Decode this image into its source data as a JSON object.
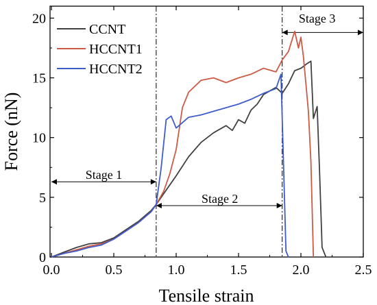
{
  "chart_data": {
    "type": "line",
    "title": "",
    "xlabel": "Tensile strain",
    "ylabel": "Force (nN)",
    "xlim": [
      0.0,
      2.5
    ],
    "ylim": [
      0,
      21
    ],
    "x_ticks": [
      0.0,
      0.5,
      1.0,
      1.5,
      2.0,
      2.5
    ],
    "x_tick_labels": [
      "0.0",
      "0.5",
      "1.0",
      "1.5",
      "2.0",
      "2.5"
    ],
    "y_ticks": [
      0,
      5,
      10,
      15,
      20
    ],
    "y_tick_labels": [
      "0",
      "5",
      "10",
      "15",
      "20"
    ],
    "grid": false,
    "legend": {
      "position": "top-left",
      "entries": [
        "CCNT",
        "HCCNT1",
        "HCCNT2"
      ]
    },
    "stage_boundaries": [
      0.84,
      1.85
    ],
    "annotations": [
      {
        "text": "Stage 1",
        "x": 0.42,
        "y": 6.3,
        "arrow_from": 0.0,
        "arrow_to": 0.84,
        "arrow_y": 6.3
      },
      {
        "text": "Stage 2",
        "x": 1.35,
        "y": 4.3,
        "arrow_from": 0.84,
        "arrow_to": 1.85,
        "arrow_y": 4.3
      },
      {
        "text": "Stage 3",
        "x": 2.13,
        "y": 19.4,
        "arrow_from": 1.85,
        "arrow_to": 2.5,
        "arrow_y": 18.8
      }
    ],
    "series": [
      {
        "name": "CCNT",
        "color": "#404040",
        "x": [
          0.0,
          0.1,
          0.2,
          0.3,
          0.4,
          0.5,
          0.6,
          0.7,
          0.8,
          0.84,
          0.9,
          1.0,
          1.1,
          1.2,
          1.3,
          1.4,
          1.45,
          1.5,
          1.55,
          1.6,
          1.65,
          1.7,
          1.75,
          1.8,
          1.85,
          1.9,
          1.95,
          2.0,
          2.05,
          2.08,
          2.1,
          2.13,
          2.15,
          2.17,
          2.2
        ],
        "y": [
          0.0,
          0.4,
          0.8,
          1.1,
          1.2,
          1.6,
          2.3,
          3.0,
          3.9,
          4.4,
          5.3,
          6.8,
          8.4,
          9.6,
          10.4,
          11.0,
          10.6,
          11.5,
          11.2,
          12.3,
          12.8,
          13.6,
          13.9,
          14.2,
          13.7,
          14.5,
          15.6,
          15.8,
          16.2,
          16.4,
          11.6,
          12.6,
          7.0,
          0.8,
          0.0
        ]
      },
      {
        "name": "HCCNT1",
        "color": "#cc5a44",
        "x": [
          0.0,
          0.1,
          0.2,
          0.3,
          0.4,
          0.5,
          0.6,
          0.7,
          0.8,
          0.84,
          0.9,
          0.95,
          1.0,
          1.05,
          1.1,
          1.15,
          1.2,
          1.3,
          1.4,
          1.5,
          1.6,
          1.7,
          1.8,
          1.85,
          1.9,
          1.95,
          1.98,
          2.0,
          2.02,
          2.04,
          2.06,
          2.08,
          2.1
        ],
        "y": [
          0.0,
          0.3,
          0.6,
          0.9,
          1.1,
          1.5,
          2.2,
          2.9,
          3.8,
          4.4,
          5.5,
          7.0,
          9.0,
          12.5,
          13.8,
          14.3,
          14.8,
          15.0,
          14.6,
          15.0,
          15.3,
          15.8,
          15.5,
          16.5,
          17.2,
          18.9,
          17.5,
          18.4,
          16.8,
          14.5,
          12.2,
          8.0,
          0.0
        ]
      },
      {
        "name": "HCCNT2",
        "color": "#3d5ccc",
        "x": [
          0.0,
          0.1,
          0.2,
          0.3,
          0.4,
          0.5,
          0.6,
          0.7,
          0.8,
          0.84,
          0.88,
          0.92,
          0.96,
          1.0,
          1.1,
          1.2,
          1.3,
          1.4,
          1.5,
          1.6,
          1.7,
          1.8,
          1.84,
          1.86,
          1.88,
          1.9
        ],
        "y": [
          0.0,
          0.3,
          0.5,
          0.8,
          1.0,
          1.5,
          2.2,
          2.9,
          3.8,
          4.4,
          7.5,
          11.5,
          11.8,
          10.8,
          11.7,
          11.9,
          12.2,
          12.5,
          12.8,
          13.2,
          13.7,
          14.1,
          15.3,
          8.0,
          0.5,
          0.0
        ]
      }
    ]
  }
}
